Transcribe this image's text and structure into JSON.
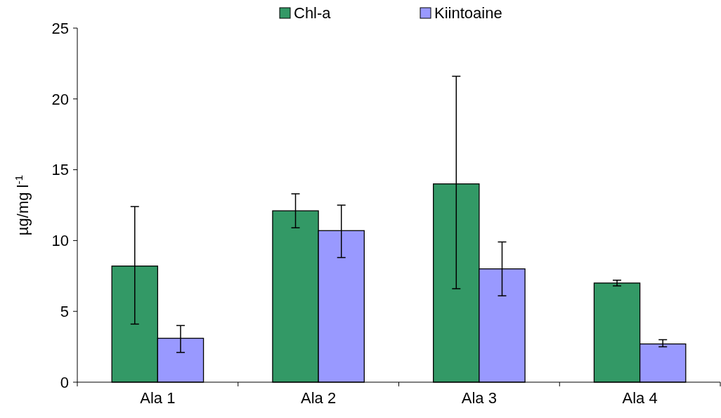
{
  "chart_data": {
    "type": "bar",
    "ylabel": "µg/mg l$^{-1}$",
    "categories": [
      "Ala 1",
      "Ala 2",
      "Ala 3",
      "Ala 4"
    ],
    "series": [
      {
        "name": "Chl-a",
        "color": "#339966",
        "values": [
          8.2,
          12.1,
          14.0,
          7.0
        ],
        "errors": [
          [
            4.1,
            12.4
          ],
          [
            10.9,
            13.3
          ],
          [
            6.6,
            21.6
          ],
          [
            6.8,
            7.2
          ]
        ]
      },
      {
        "name": "Kiintoaine",
        "color": "#9999ff",
        "values": [
          3.1,
          10.7,
          8.0,
          2.7
        ],
        "errors": [
          [
            2.1,
            4.0
          ],
          [
            8.8,
            12.5
          ],
          [
            6.1,
            9.9
          ],
          [
            2.5,
            3.0
          ]
        ]
      }
    ],
    "ylim": [
      0,
      25
    ],
    "yticks": [
      0,
      5,
      10,
      15,
      20,
      25
    ],
    "grid": false,
    "legend": "top"
  }
}
